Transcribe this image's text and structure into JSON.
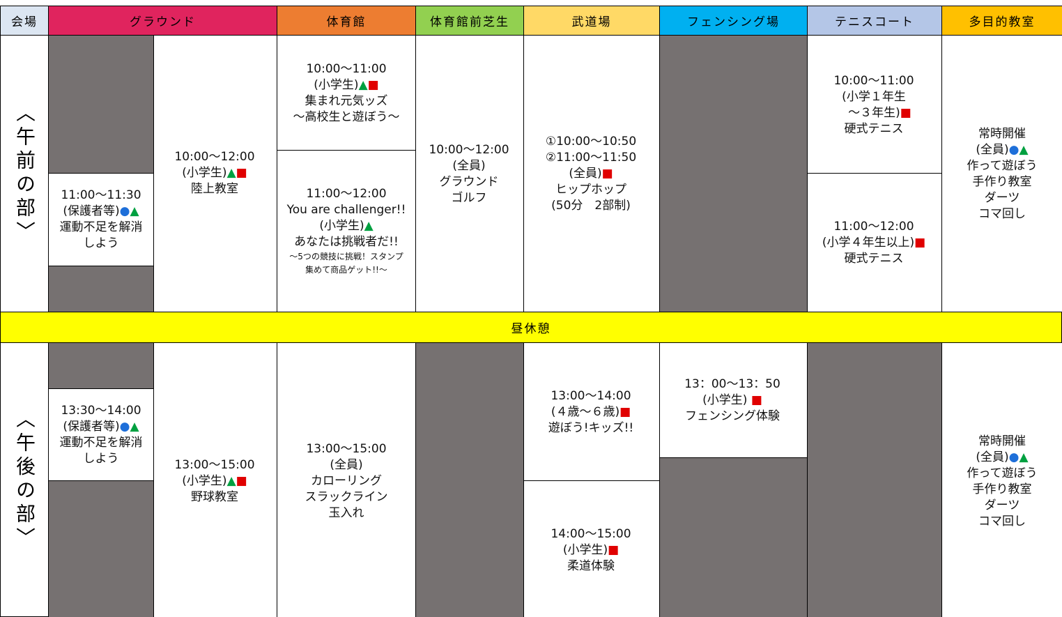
{
  "headers": [
    "会場",
    "グラウンド",
    "体育館",
    "体育館前芝生",
    "武道場",
    "フェンシング場",
    "テニスコート",
    "多目的教室"
  ],
  "lunch": "昼休憩",
  "morning": {
    "label": "〈午前の部〉",
    "cells": [
      {
        "lines": [
          "11:00～11:30",
          "(保護者等)●▲",
          "運動不足を解消",
          "しよう"
        ]
      },
      {
        "lines": [
          "10:00～12:00",
          "(小学生)▲■",
          "陸上教室"
        ]
      },
      {
        "lines": [
          "10:00～11:00",
          "(小学生)▲■",
          "集まれ元気ッズ",
          "～高校生と遊ぼう～"
        ]
      },
      {
        "lines": [
          "11:00～12:00",
          "You are challenger!!",
          "(小学生)▲",
          "あなたは挑戦者だ!!"
        ],
        "note": [
          "～5つの競技に挑戦！スタンプ",
          "集めて商品ゲット!!～"
        ]
      },
      {
        "lines": [
          "10:00～12:00",
          "(全員)",
          "グラウンド",
          "ゴルフ"
        ]
      },
      {
        "lines": [
          "①10:00～10:50",
          "②11:00～11:50",
          "(全員)■",
          "ヒップホップ",
          "(50分　2部制)"
        ]
      },
      {
        "lines": [
          "10:00～11:00",
          "(小学１年生",
          "　～３年生)■",
          "硬式テニス"
        ]
      },
      {
        "lines": [
          "11:00～12:00",
          "(小学４年生以上)■",
          "硬式テニス"
        ]
      },
      {
        "lines": [
          "常時開催",
          "(全員)●▲",
          "作って遊ぼう",
          "手作り教室",
          "ダーツ",
          "コマ回し"
        ]
      }
    ]
  },
  "afternoon": {
    "label": "〈午後の部〉",
    "cells": [
      {
        "lines": [
          "13:30～14:00",
          "(保護者等)●▲",
          "運動不足を解消",
          "しよう"
        ]
      },
      {
        "lines": [
          "13:00～15:00",
          "(小学生)▲■",
          "野球教室"
        ]
      },
      {
        "lines": [
          "13:00～15:00",
          "(全員)",
          "カローリング",
          "スラックライン",
          "玉入れ"
        ]
      },
      {
        "lines": [
          "13:00～14:00",
          "(４歳～６歳)■",
          "遊ぼう!キッズ!!"
        ]
      },
      {
        "lines": [
          "14:00～15:00",
          "(小学生)■",
          "柔道体験"
        ]
      },
      {
        "lines": [
          "13：00～13：50",
          "(小学生) ■",
          "フェンシング体験"
        ]
      },
      {
        "lines": [
          "常時開催",
          "(全員)●▲",
          "作って遊ぼう",
          "手作り教室",
          "ダーツ",
          "コマ回し"
        ]
      }
    ]
  }
}
